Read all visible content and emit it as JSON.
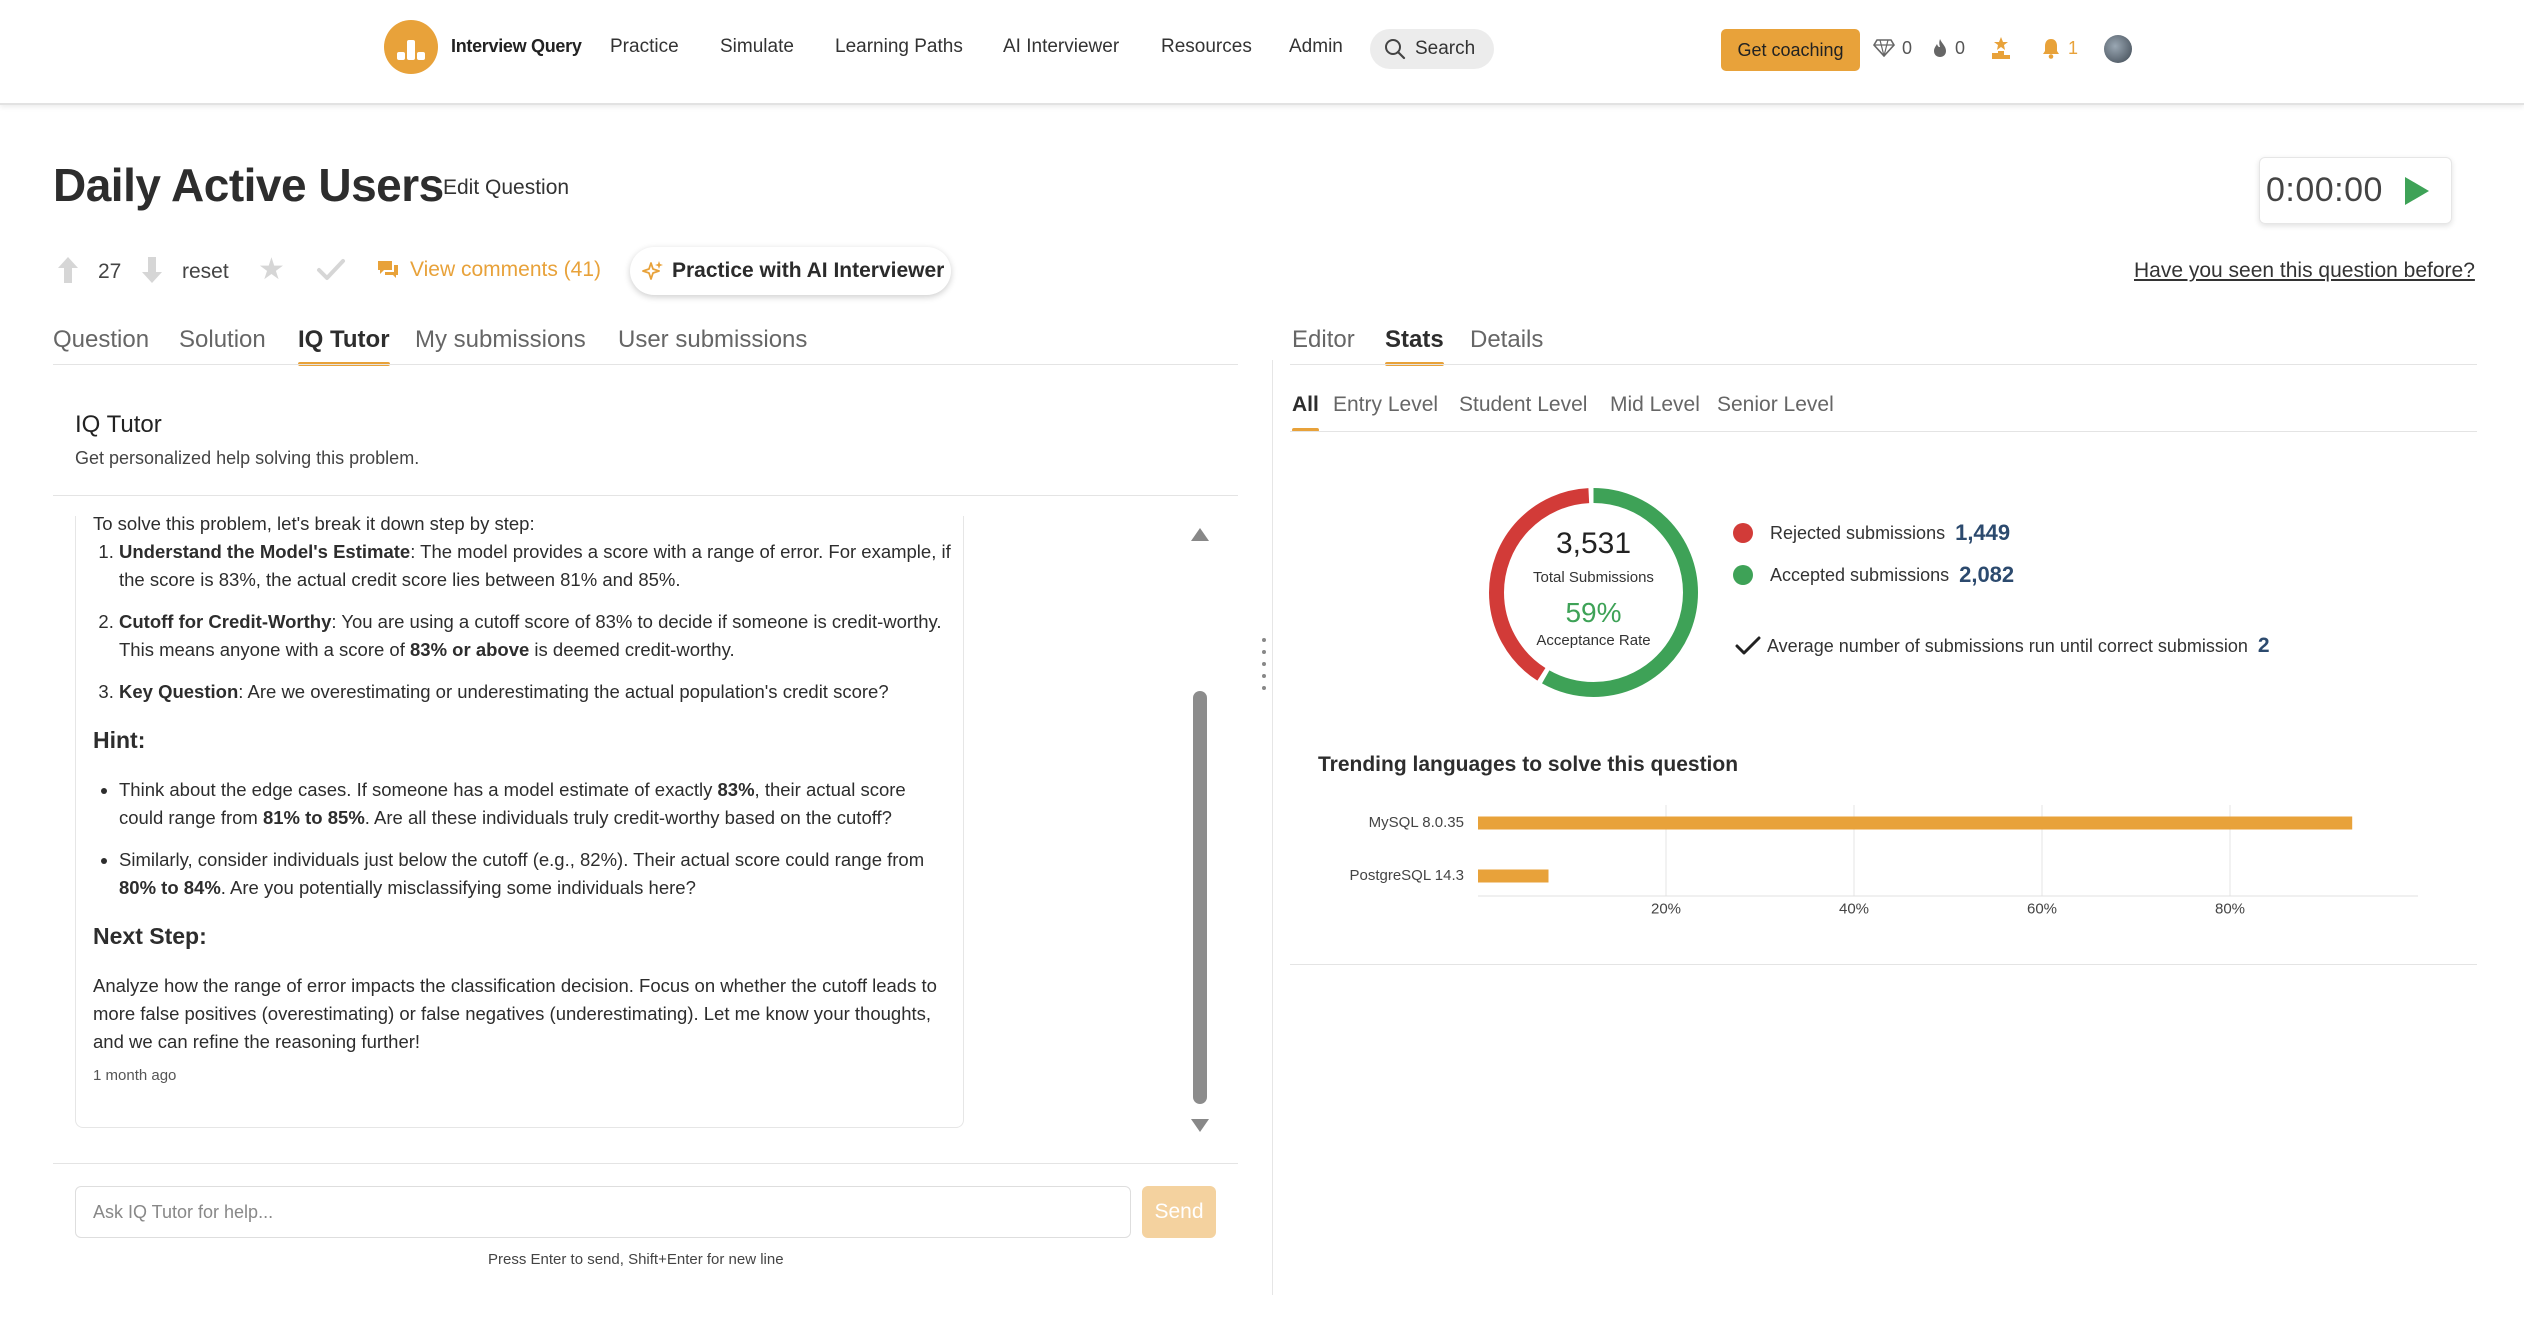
{
  "nav": {
    "brand": "Interview Query",
    "links": [
      "Practice",
      "Simulate",
      "Learning Paths",
      "AI Interviewer",
      "Resources",
      "Admin"
    ],
    "search_label": "Search",
    "coaching_label": "Get coaching",
    "gems_count": "0",
    "streak_count": "0",
    "notifications_count": "1",
    "accent_color": "#e8a23a"
  },
  "question": {
    "title": "Daily Active Users",
    "edit_label": "Edit Question",
    "timer": "0:00:00",
    "votes": "27",
    "reset_label": "reset",
    "comments_label": "View comments (41)",
    "practice_ai_label": "Practice with AI Interviewer",
    "seen_before_label": "Have you seen this question before?"
  },
  "left_tabs": [
    "Question",
    "Solution",
    "IQ Tutor",
    "My submissions",
    "User submissions"
  ],
  "left_active_tab": "IQ Tutor",
  "right_tabs": [
    "Editor",
    "Stats",
    "Details"
  ],
  "right_active_tab": "Stats",
  "tutor": {
    "title": "IQ Tutor",
    "subtitle": "Get personalized help solving this problem.",
    "message": {
      "intro": "To solve this problem, let's break it down step by step:",
      "steps": [
        {
          "bold": "Understand the Model's Estimate",
          "text": ": The model provides a score with a range of error. For example, if the score is 83%, the actual credit score lies between 81% and 85%."
        },
        {
          "bold": "Cutoff for Credit-Worthy",
          "text": ": You are using a cutoff score of 83% to decide if someone is credit-worthy. This means anyone with a score of ",
          "bold2": "83% or above",
          "text2": " is deemed credit-worthy."
        },
        {
          "bold": "Key Question",
          "text": ": Are we overestimating or underestimating the actual population's credit score?"
        }
      ],
      "hint_heading": "Hint:",
      "hints": [
        {
          "t1": "Think about the edge cases. If someone has a model estimate of exactly ",
          "b1": "83%",
          "t2": ", their actual score could range from ",
          "b2": "81% to 85%",
          "t3": ". Are all these individuals truly credit-worthy based on the cutoff?"
        },
        {
          "t1": "Similarly, consider individuals just below the cutoff (e.g., 82%). Their actual score could range from ",
          "b1": "80% to 84%",
          "t2": ". Are you potentially misclassifying some individuals here?"
        }
      ],
      "next_heading": "Next Step:",
      "next_text": "Analyze how the range of error impacts the classification decision. Focus on whether the cutoff leads to more false positives (overestimating) or false negatives (underestimating). Let me know your thoughts, and we can refine the reasoning further!",
      "timestamp": "1 month ago"
    },
    "input_placeholder": "Ask IQ Tutor for help...",
    "send_label": "Send",
    "hint_text": "Press Enter to send, Shift+Enter for new line"
  },
  "stats": {
    "level_tabs": [
      "All",
      "Entry Level",
      "Student Level",
      "Mid Level",
      "Senior Level"
    ],
    "active_level": "All",
    "total_submissions": "3,531",
    "total_label": "Total Submissions",
    "acceptance_rate": "59%",
    "acceptance_label": "Acceptance Rate",
    "acceptance_fraction": 0.59,
    "rejected_label": "Rejected submissions",
    "rejected_count": "1,449",
    "accepted_label": "Accepted submissions",
    "accepted_count": "2,082",
    "avg_label": "Average number of submissions run until correct submission",
    "avg_value": "2",
    "rejected_color": "#d23b38",
    "accepted_color": "#3ea257",
    "trending_title": "Trending languages to solve this question"
  },
  "chart_data": {
    "type": "bar",
    "orientation": "horizontal",
    "categories": [
      "MySQL 8.0.35",
      "PostgreSQL 14.3"
    ],
    "values": [
      93,
      7.5
    ],
    "x_ticks": [
      "20%",
      "40%",
      "60%",
      "80%"
    ],
    "xlim": [
      0,
      100
    ],
    "color": "#e8a23a",
    "grid": true
  }
}
